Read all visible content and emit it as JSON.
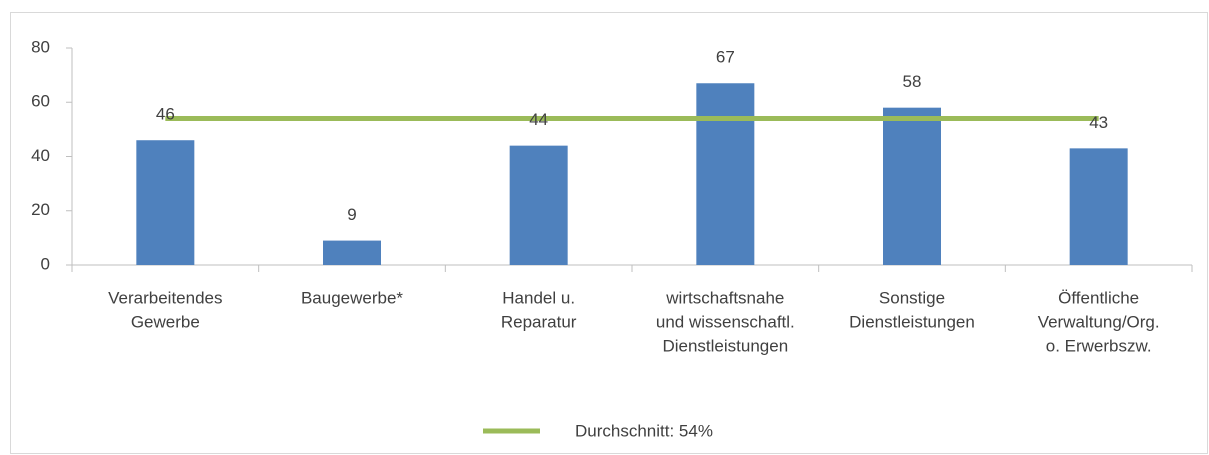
{
  "chart_data": {
    "type": "bar",
    "categories": [
      [
        "Verarbeitendes",
        "Gewerbe"
      ],
      [
        "Baugewerbe*"
      ],
      [
        "Handel u.",
        "Reparatur"
      ],
      [
        "wirtschaftsnahe",
        "und wissenschaftl.",
        "Dienstleistungen"
      ],
      [
        "Sonstige",
        "Dienstleistungen"
      ],
      [
        "Öffentliche",
        "Verwaltung/Org.",
        "o. Erwerbszw."
      ]
    ],
    "values": [
      46,
      9,
      44,
      67,
      58,
      43
    ],
    "color": "#4f81bd",
    "average": {
      "name": "Durchschnitt: 54%",
      "value": 54,
      "color": "#9bbb59"
    },
    "ylim": [
      0,
      80
    ],
    "yticks": [
      0,
      20,
      40,
      60,
      80
    ],
    "grid": false
  }
}
